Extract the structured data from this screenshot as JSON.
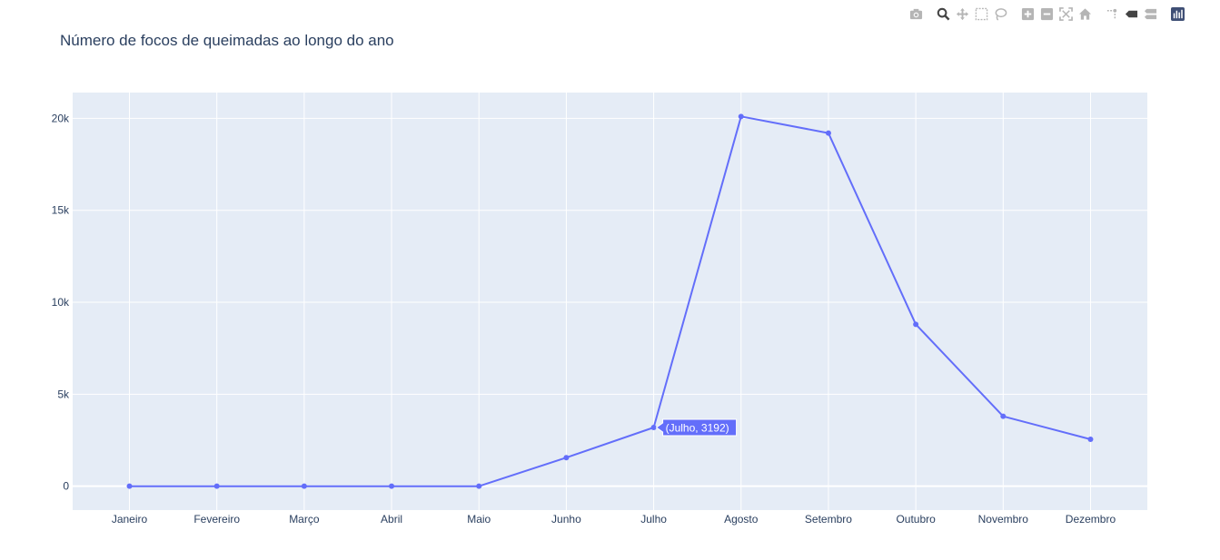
{
  "modebar": {
    "buttons": [
      {
        "icon": "camera-icon",
        "title": "Download plot as a png"
      },
      {
        "icon": "zoom-icon",
        "title": "Zoom"
      },
      {
        "icon": "pan-icon",
        "title": "Pan"
      },
      {
        "icon": "box-select-icon",
        "title": "Box Select"
      },
      {
        "icon": "lasso-select-icon",
        "title": "Lasso Select"
      },
      {
        "icon": "zoom-in-icon",
        "title": "Zoom in"
      },
      {
        "icon": "zoom-out-icon",
        "title": "Zoom out"
      },
      {
        "icon": "autoscale-icon",
        "title": "Autoscale"
      },
      {
        "icon": "reset-axes-icon",
        "title": "Reset axes"
      },
      {
        "icon": "spike-lines-icon",
        "title": "Toggle Spike Lines"
      },
      {
        "icon": "hover-closest-icon",
        "title": "Show closest data on hover"
      },
      {
        "icon": "hover-compare-icon",
        "title": "Compare data on hover"
      },
      {
        "icon": "plotly-logo-icon",
        "title": "Produced with Plotly"
      }
    ]
  },
  "chart_data": {
    "type": "line",
    "title": "Número de focos de queimadas ao longo do ano",
    "xlabel": "",
    "ylabel": "",
    "categories": [
      "Janeiro",
      "Fevereiro",
      "Março",
      "Abril",
      "Maio",
      "Junho",
      "Julho",
      "Agosto",
      "Setembro",
      "Outubro",
      "Novembro",
      "Dezembro"
    ],
    "values": [
      0,
      0,
      0,
      0,
      0,
      1550,
      3192,
      20100,
      19200,
      8800,
      3800,
      2550
    ],
    "ylim": [
      -1300,
      21400
    ],
    "yticks": [
      0,
      5000,
      10000,
      15000,
      20000
    ],
    "ytick_labels": [
      "0",
      "5k",
      "10k",
      "15k",
      "20k"
    ],
    "grid": true,
    "colors": {
      "line": "#636efa",
      "plot_bg": "#e5ecf6",
      "grid": "#ffffff",
      "text": "#2a3f5f"
    },
    "hover": {
      "category": "Julho",
      "value": 3192,
      "label": "(Julho, 3192)"
    }
  }
}
